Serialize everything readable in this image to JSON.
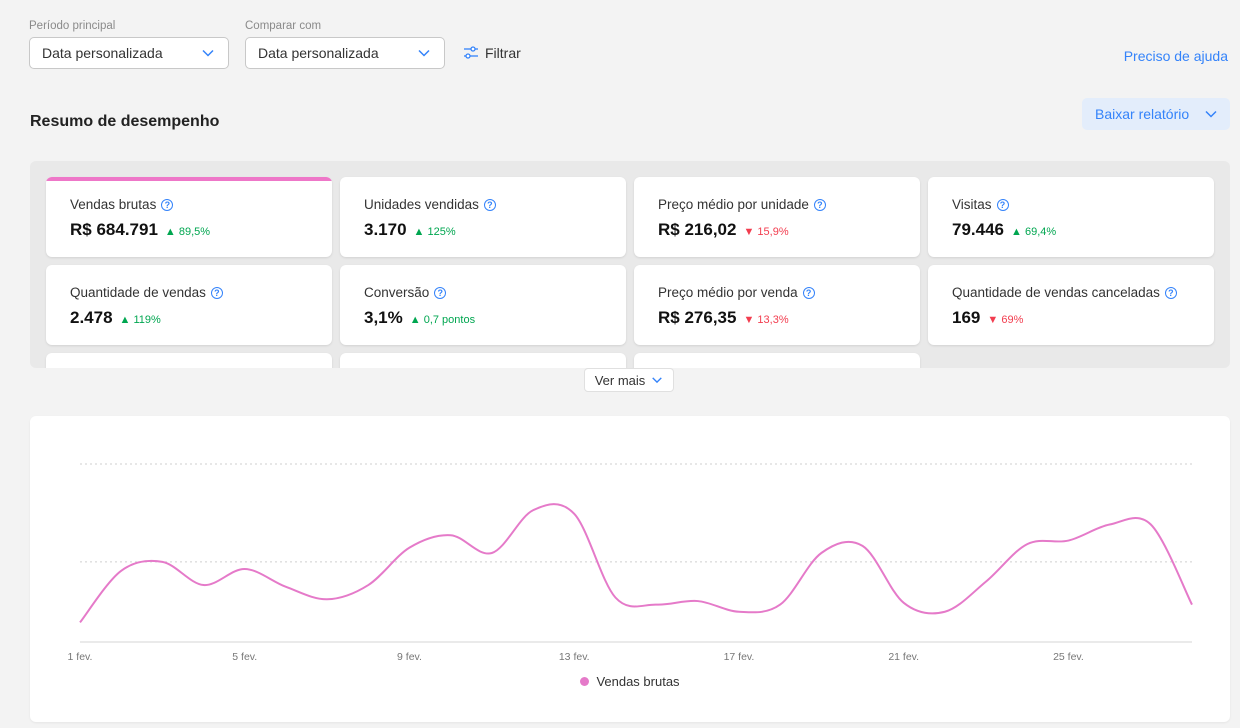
{
  "filters": {
    "main_period": {
      "label": "Período principal",
      "value": "Data personalizada"
    },
    "compare": {
      "label": "Comparar com",
      "value": "Data personalizada"
    },
    "filter_label": "Filtrar"
  },
  "help_label": "Preciso de ajuda",
  "summary": {
    "title": "Resumo de desempenho",
    "download_label": "Baixar relatório",
    "see_more_label": "Ver mais"
  },
  "metrics": [
    {
      "label": "Vendas brutas",
      "value": "R$ 684.791",
      "delta": "89,5%",
      "trend": "up"
    },
    {
      "label": "Unidades vendidas",
      "value": "3.170",
      "delta": "125%",
      "trend": "up"
    },
    {
      "label": "Preço médio por unidade",
      "value": "R$ 216,02",
      "delta": "15,9%",
      "trend": "down"
    },
    {
      "label": "Visitas",
      "value": "79.446",
      "delta": "69,4%",
      "trend": "up"
    },
    {
      "label": "Quantidade de vendas",
      "value": "2.478",
      "delta": "119%",
      "trend": "up"
    },
    {
      "label": "Conversão",
      "value": "3,1%",
      "delta": "0,7 pontos",
      "trend": "up"
    },
    {
      "label": "Preço médio por venda",
      "value": "R$ 276,35",
      "delta": "13,3%",
      "trend": "down"
    },
    {
      "label": "Quantidade de vendas canceladas",
      "value": "169",
      "delta": "69%",
      "trend": "down"
    }
  ],
  "colors": {
    "accent": "#3483fa",
    "series": "#e57ac9",
    "up": "#00a650",
    "down": "#f23d4f"
  },
  "chart_data": {
    "type": "line",
    "x": [
      1,
      2,
      3,
      4,
      5,
      6,
      7,
      8,
      9,
      10,
      11,
      12,
      13,
      14,
      15,
      16,
      17,
      18,
      19,
      20,
      21,
      22,
      23,
      24,
      25,
      26,
      27,
      28
    ],
    "x_tick_labels": [
      "1 fev.",
      "5 fev.",
      "9 fev.",
      "13 fev.",
      "17 fev.",
      "21 fev.",
      "25 fev."
    ],
    "x_tick_values": [
      1,
      5,
      9,
      13,
      17,
      21,
      25
    ],
    "series": [
      {
        "name": "Vendas brutas",
        "values": [
          0.11,
          0.4,
          0.45,
          0.32,
          0.41,
          0.31,
          0.24,
          0.32,
          0.53,
          0.6,
          0.5,
          0.74,
          0.72,
          0.25,
          0.21,
          0.23,
          0.17,
          0.21,
          0.5,
          0.54,
          0.22,
          0.17,
          0.34,
          0.55,
          0.57,
          0.66,
          0.66,
          0.21
        ]
      }
    ],
    "ylim": [
      0,
      1
    ],
    "grid": true,
    "legend": "bottom-center"
  }
}
